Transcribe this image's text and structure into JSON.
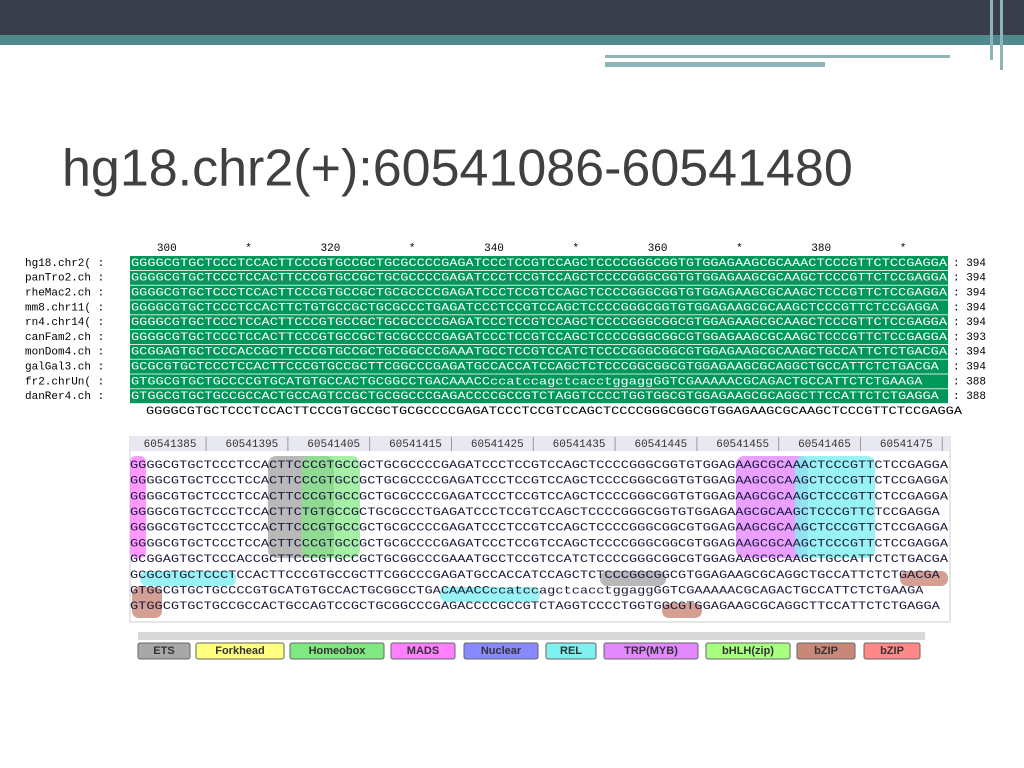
{
  "title": "hg18.chr2(+):60541086-60541480",
  "alignment": {
    "ruler": [
      "300",
      "*",
      "320",
      "*",
      "340",
      "*",
      "360",
      "*",
      "380",
      "*"
    ],
    "rows": [
      {
        "name": "hg18.chr2( :",
        "seq": "GGGGCGTGCTCCCTCCACTTCCCGTGCCGCTGCGCCCCGAGATCCCTCCGTCCAGCTCCCCGGGCGGTGTGGAGAAGCGCAAACTCCCGTTCTCCGAGGA",
        "end": ": 394"
      },
      {
        "name": "panTro2.ch :",
        "seq": "GGGGCGTGCTCCCTCCACTTCCCGTGCCGCTGCGCCCCGAGATCCCTCCGTCCAGCTCCCCGGGCGGTGTGGAGAAGCGCAAGCTCCCGTTCTCCGAGGA",
        "end": ": 394"
      },
      {
        "name": "rheMac2.ch :",
        "seq": "GGGGCGTGCTCCCTCCACTTCCCGTGCCGCTGCGCCCCGAGATCCCTCCGTCCAGCTCCCCGGGCGGTGTGGAGAAGCGCAAGCTCCCGTTCTCCGAGGA",
        "end": ": 394"
      },
      {
        "name": "mm8.chr11( :",
        "seq": "GGGGCGTGCTCCCTCCACTTCTGTGCCGCTGCGCCCTGAGATCCCTCCGTCCAGCTCCCCGGGCGGTGTGGAGAAGCGCAAGCTCCCGTTCTCCGAGGA",
        "end": ": 394"
      },
      {
        "name": "rn4.chr14( :",
        "seq": "GGGGCGTGCTCCCTCCACTTCCCGTGCCGCTGCGCCCCGAGATCCCTCCGTCCAGCTCCCCGGGCGGCGTGGAGAAGCGCAAGCTCCCGTTCTCCGAGGA",
        "end": ": 394"
      },
      {
        "name": "canFam2.ch :",
        "seq": "GGGGCGTGCTCCCTCCACTTCCCGTGCCGCTGCGCCCCGAGATCCCTCCGTCCAGCTCCCCGGGCGGCGTGGAGAAGCGCAAGCTCCCGTTCTCCGAGGA",
        "end": ": 393"
      },
      {
        "name": "monDom4.ch :",
        "seq": "GCGGAGTGCTCCCACCGCTTCCCGTGCCGCTGCGGCCCGAAATGCCTCCGTCCATCTCCCCGGGCGGCGTGGAGAAGCGCAAGCTGCCATTCTCTGACGA",
        "end": ": 394"
      },
      {
        "name": "galGal3.ch :",
        "seq": "GCGCGTGCTCCCTCCACTTCCCGTGCCGCTTCGGCCCGAGATGCCACCATCCAGCTCTCCCGGCGGCGTGGAGAAGCGCAGGCTGCCATTCTCTGACGA",
        "end": ": 394"
      },
      {
        "name": "fr2.chrUn( :",
        "seq": "GTGGCGTGCTGCCCCGTGCATGTGCCACTGCGGCCTGACAAACCccatccagctcacctggaggGGTCGAAAAACGCAGACTGCCATTCTCTGAAGA",
        "end": ": 388"
      },
      {
        "name": "danRer4.ch :",
        "seq": "GTGGCGTGCTGCCGCCACTGCCAGTCCGCTGCGGCCCGAGACCCCGCCGTCTAGGTCCCCTGGTGGCGTGGAGAAGCGCAGGCTTCCATTCTCTGAGGA",
        "end": ": 388"
      }
    ],
    "consensus": "GGGGCGTGCTCCCTCCACTTCCCGTGCCGCTGCGCCCCGAGATCCCTCCGTCCAGCTCCCCGGGCGGCGTGGAGAAGCGCAAGCTCCCGTTCTCCGAGGA"
  },
  "tracks": {
    "coords": [
      "60541385",
      "60541395",
      "60541405",
      "60541415",
      "60541425",
      "60541435",
      "60541445",
      "60541455",
      "60541465",
      "60541475"
    ],
    "rows": [
      "GGGGCGTGCTCCCTCCACTTCCCGTGCCGCTGCGCCCCGAGATCCCTCCGTCCAGCTCCCCGGGCGGTGTGGAGAAGCGCAAACTCCCGTTCTCCGAGGA",
      "GGGGCGTGCTCCCTCCACTTCCCGTGCCGCTGCGCCCCGAGATCCCTCCGTCCAGCTCCCCGGGCGGTGTGGAGAAGCGCAAGCTCCCGTTCTCCGAGGA",
      "GGGGCGTGCTCCCTCCACTTCCCGTGCCGCTGCGCCCCGAGATCCCTCCGTCCAGCTCCCCGGGCGGTGTGGAGAAGCGCAAGCTCCCGTTCTCCGAGGA",
      "GGGGCGTGCTCCCTCCACTTCTGTGCCGCTGCGCCCTGAGATCCCTCCGTCCAGCTCCCCGGGCGGTGTGGAGAAGCGCAAGCTCCCGTTCTCCGAGGA",
      "GGGGCGTGCTCCCTCCACTTCCCGTGCCGCTGCGCCCCGAGATCCCTCCGTCCAGCTCCCCGGGCGGCGTGGAGAAGCGCAAGCTCCCGTTCTCCGAGGA",
      "GGGGCGTGCTCCCTCCACTTCCCGTGCCGCTGCGCCCCGAGATCCCTCCGTCCAGCTCCCCGGGCGGCGTGGAGAAGCGCAAGCTCCCGTTCTCCGAGGA",
      "GCGGAGTGCTCCCACCGCTTCCCGTGCCGCTGCGGCCCGAAATGCCTCCGTCCATCTCCCCGGGCGGCGTGGAGAAGCGCAAGCTGCCATTCTCTGACGA",
      "GCGCGTGCTCCCTCCACTTCCCGTGCCGCTTCGGCCCGAGATGCCACCATCCAGCTCTCCCGGCGGCGTGGAGAAGCGCAGGCTGCCATTCTCTGACGA",
      "GTGGCGTGCTGCCCCGTGCATGTGCCACTGCGGCCTGACAAACCccatccagctcacctggaggGGTCGAAAAACGCAGACTGCCATTCTCTGAAGA",
      "GTGGCGTGCTGCCGCCACTGCCAGTCCGCTGCGGCCCGAGACCCCGCCGTCTAGGTCCCCTGGTGGCGTGGAGAAGCGCAGGCTTCCATTCTCTGAGGA"
    ]
  },
  "legend": [
    {
      "label": "ETS",
      "color": "#a8a8a8"
    },
    {
      "label": "Forkhead",
      "color": "#ffff80"
    },
    {
      "label": "Homeobox",
      "color": "#80e880"
    },
    {
      "label": "MADS",
      "color": "#ff80ff"
    },
    {
      "label": "Nuclear",
      "color": "#8888ff"
    },
    {
      "label": "REL",
      "color": "#80f0f0"
    },
    {
      "label": "TRP(MYB)",
      "color": "#e488ff"
    },
    {
      "label": "bHLH(zip)",
      "color": "#a8ff80"
    },
    {
      "label": "bZIP",
      "color": "#c88878"
    },
    {
      "label": "bZIP",
      "color": "#ff8888"
    }
  ]
}
